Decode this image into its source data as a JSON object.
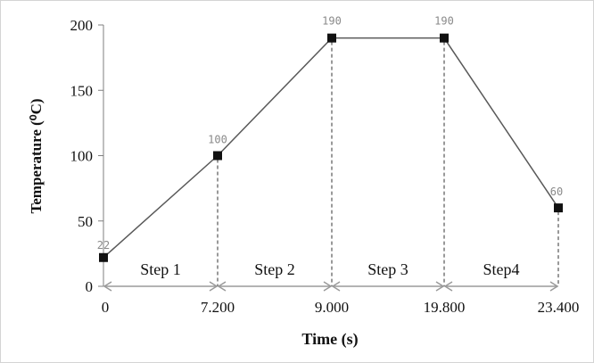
{
  "chart_data": {
    "type": "line",
    "xlabel": "Time (s)",
    "ylabel": "Temperature (⁰C)",
    "ylim": [
      0,
      200
    ],
    "yticks": [
      "0",
      "50",
      "100",
      "150",
      "200"
    ],
    "categories": [
      "0",
      "7.200",
      "9.000",
      "19.800",
      "23.400"
    ],
    "values": [
      22,
      100,
      190,
      190,
      60
    ],
    "data_labels": [
      "22",
      "100",
      "190",
      "190",
      "60"
    ],
    "steps": [
      "Step 1",
      "Step 2",
      "Step 3",
      "Step4"
    ],
    "line_color": "#595959",
    "marker_color": "#111111",
    "grid": false
  }
}
